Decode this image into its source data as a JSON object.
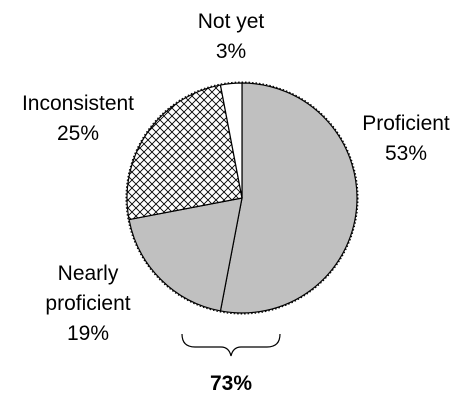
{
  "chart_data": {
    "type": "pie",
    "title": "",
    "slices": [
      {
        "label": "Proficient",
        "label_lines": [
          "Proficient"
        ],
        "value": 53,
        "value_label": "53%",
        "fill": "solid",
        "color": "#c0c0c0"
      },
      {
        "label": "Nearly proficient",
        "label_lines": [
          "Nearly",
          "proficient"
        ],
        "value": 19,
        "value_label": "19%",
        "fill": "solid",
        "color": "#c0c0c0"
      },
      {
        "label": "Inconsistent",
        "label_lines": [
          "Inconsistent"
        ],
        "value": 25,
        "value_label": "25%",
        "fill": "crosshatch",
        "color": "#000000"
      },
      {
        "label": "Not yet",
        "label_lines": [
          "Not yet"
        ],
        "value": 3,
        "value_label": "3%",
        "fill": "solid",
        "color": "#ffffff"
      }
    ],
    "start_angle_deg": 0,
    "direction": "clockwise",
    "bracket": {
      "spans": [
        "Proficient",
        "Nearly proficient"
      ],
      "label": "73%"
    },
    "legend": "none"
  }
}
